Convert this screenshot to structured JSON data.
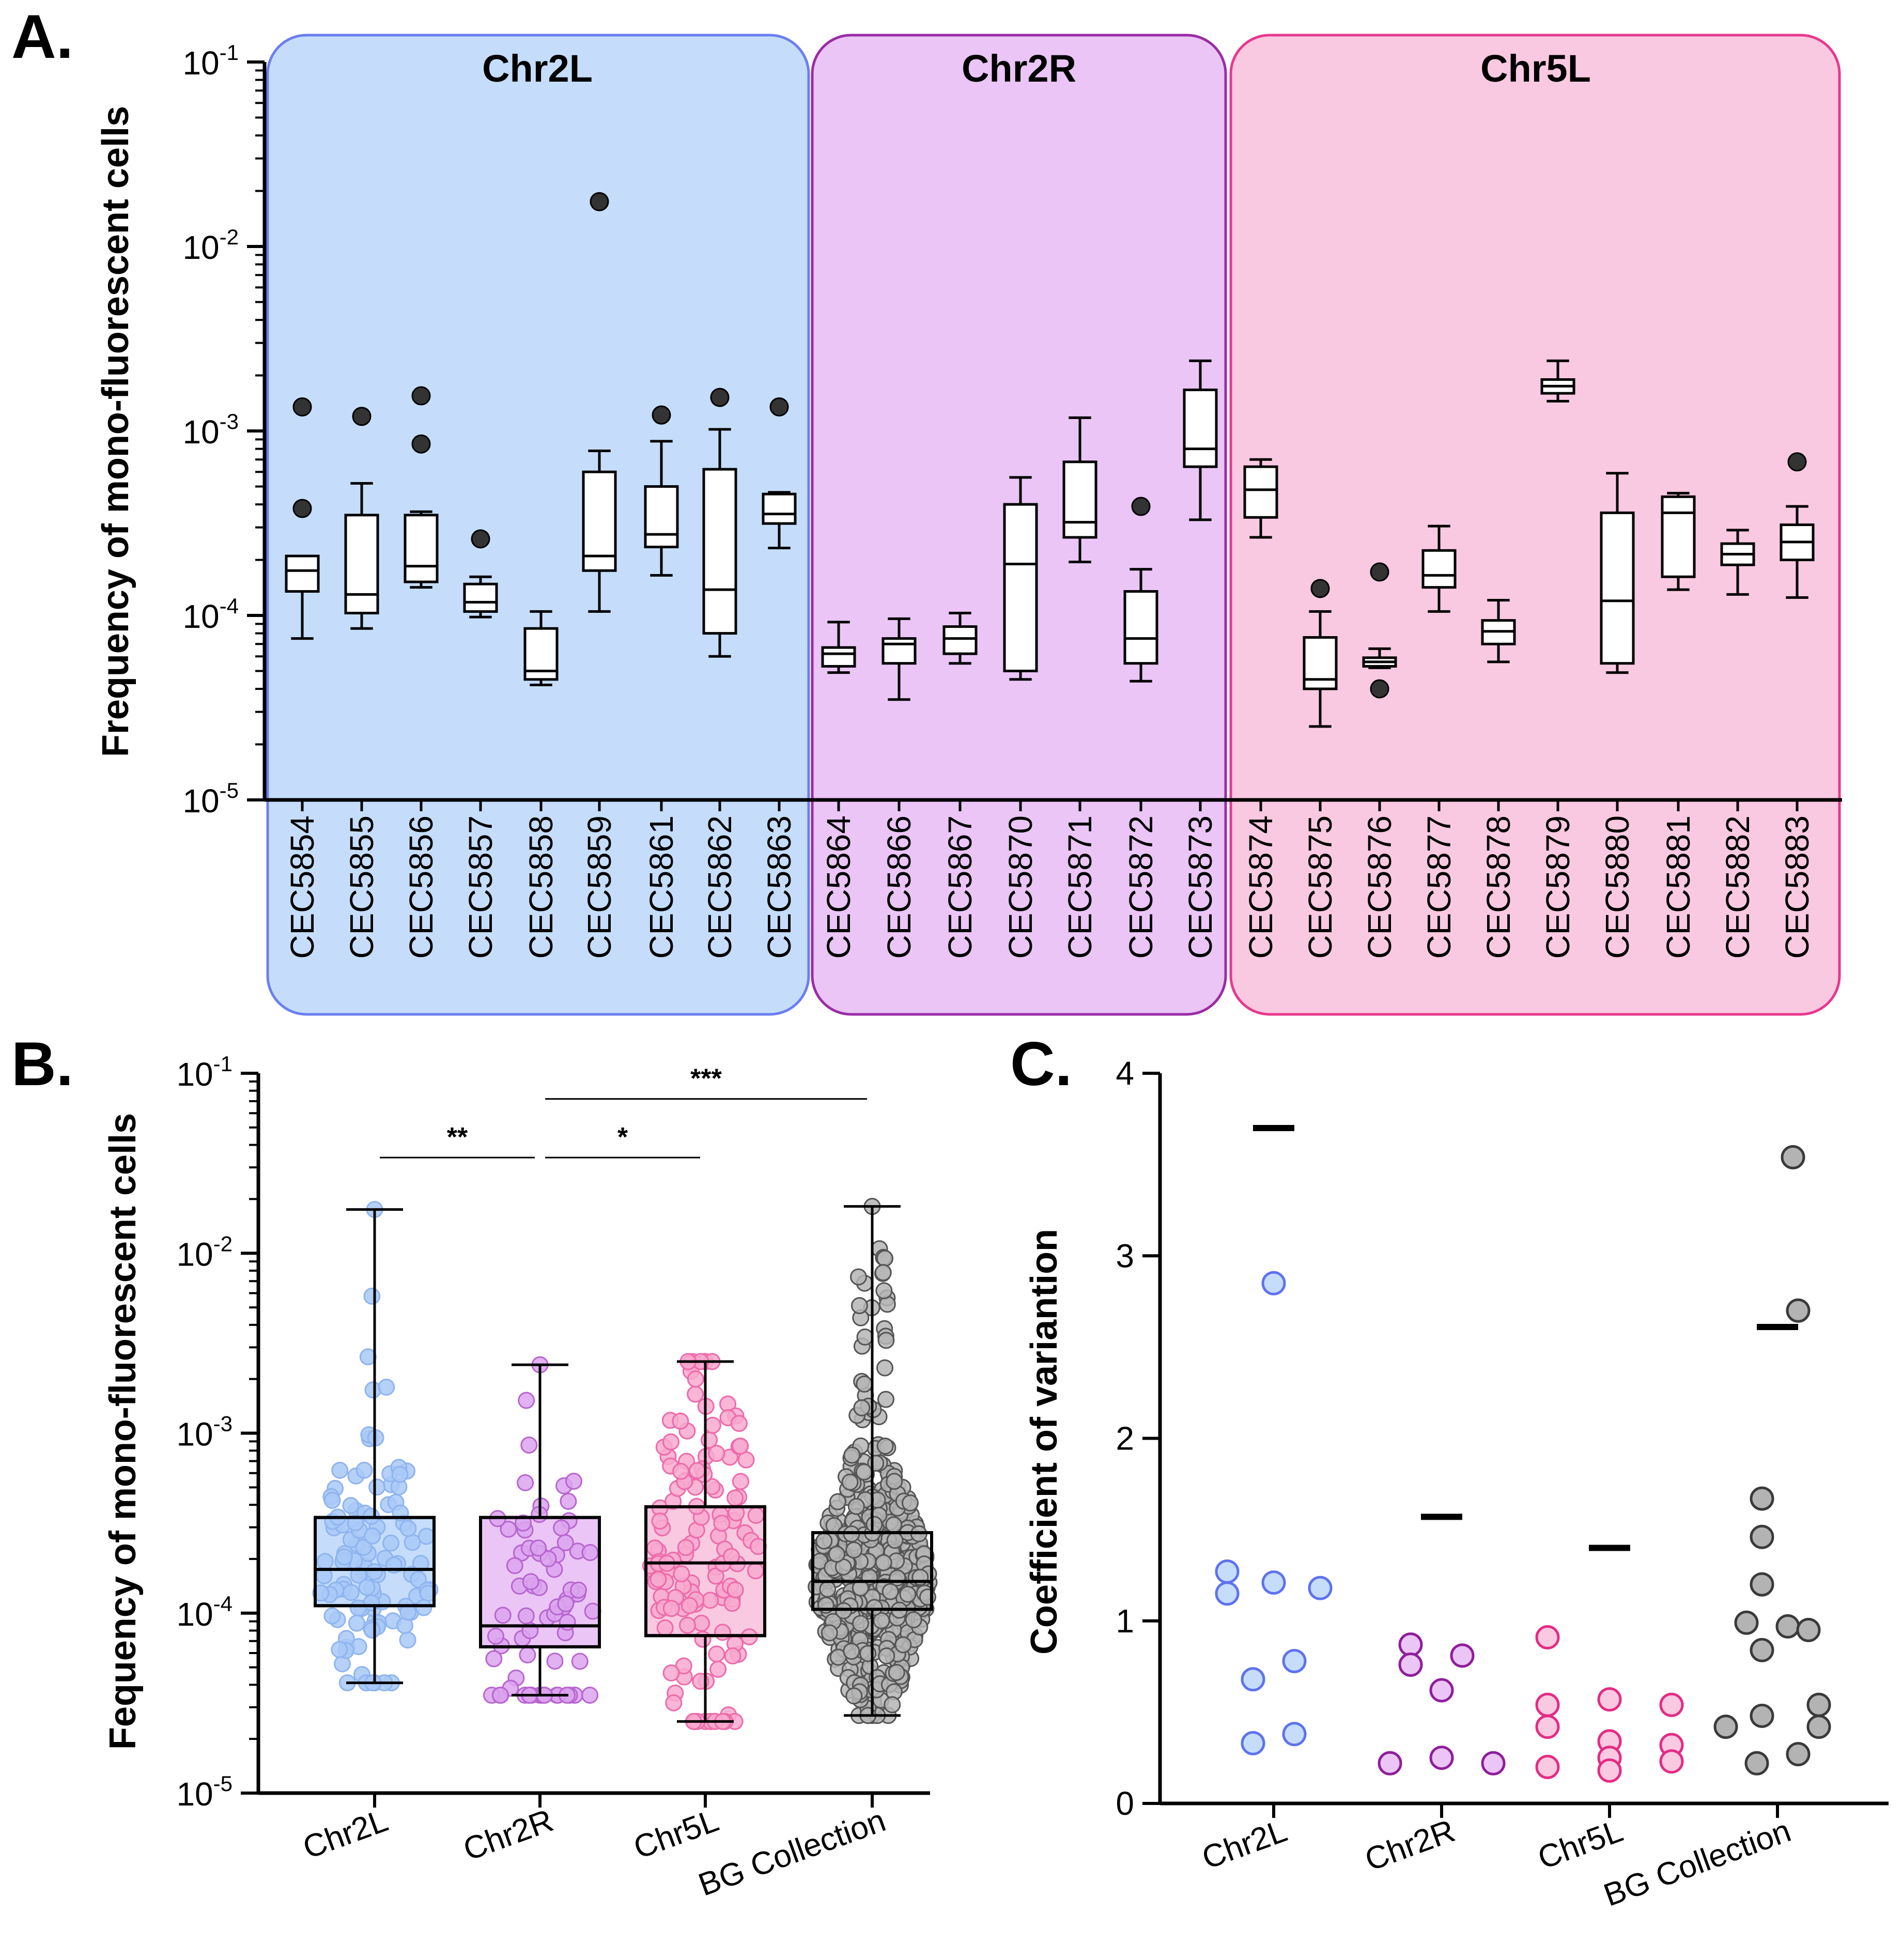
{
  "figure": {
    "panel_letters": [
      "A.",
      "B.",
      "C."
    ]
  },
  "chart_data": [
    {
      "panel": "A.",
      "type": "box",
      "ylabel": "Frequency of mono-fluorescent cells",
      "yscale": "log",
      "ylim": [
        1e-05,
        0.1
      ],
      "yticks": [
        {
          "base": "10",
          "exp": "-1",
          "value": 0.1
        },
        {
          "base": "10",
          "exp": "-2",
          "value": 0.01
        },
        {
          "base": "10",
          "exp": "-3",
          "value": 0.001
        },
        {
          "base": "10",
          "exp": "-4",
          "value": 0.0001
        },
        {
          "base": "10",
          "exp": "-5",
          "value": 1e-05
        }
      ],
      "groups": [
        {
          "name": "Chr2L",
          "fill": "#c5ddfb",
          "stroke": "#6b7ef0",
          "strains": [
            {
              "label": "CEC5854",
              "min": 7.5e-05,
              "q1": 0.000135,
              "median": 0.000175,
              "q3": 0.00021,
              "max": 0.00021,
              "outliers": [
                0.00038,
                0.00135
              ]
            },
            {
              "label": "CEC5855",
              "min": 8.5e-05,
              "q1": 0.000103,
              "median": 0.00013,
              "q3": 0.00035,
              "max": 0.00052,
              "outliers": [
                0.0012
              ]
            },
            {
              "label": "CEC5856",
              "min": 0.000142,
              "q1": 0.000152,
              "median": 0.000185,
              "q3": 0.00035,
              "max": 0.000365,
              "outliers": [
                0.00085,
                0.00155
              ]
            },
            {
              "label": "CEC5857",
              "min": 9.8e-05,
              "q1": 0.000105,
              "median": 0.000118,
              "q3": 0.000148,
              "max": 0.000162,
              "outliers": [
                0.00026
              ]
            },
            {
              "label": "CEC5858",
              "min": 4.2e-05,
              "q1": 4.5e-05,
              "median": 5e-05,
              "q3": 8.5e-05,
              "max": 0.000105,
              "outliers": []
            },
            {
              "label": "CEC5859",
              "min": 0.000105,
              "q1": 0.000175,
              "median": 0.00021,
              "q3": 0.0006,
              "max": 0.00078,
              "outliers": [
                0.0175
              ]
            },
            {
              "label": "CEC5861",
              "min": 0.000165,
              "q1": 0.000235,
              "median": 0.000275,
              "q3": 0.0005,
              "max": 0.00088,
              "outliers": [
                0.00122
              ]
            },
            {
              "label": "CEC5862",
              "min": 6e-05,
              "q1": 8e-05,
              "median": 0.000138,
              "q3": 0.00062,
              "max": 0.00102,
              "outliers": [
                0.00152
              ]
            },
            {
              "label": "CEC5863",
              "min": 0.000232,
              "q1": 0.000315,
              "median": 0.000355,
              "q3": 0.000455,
              "max": 0.000465,
              "outliers": [
                0.00135
              ]
            }
          ]
        },
        {
          "name": "Chr2R",
          "fill": "#eac5f6",
          "stroke": "#9a2ca6",
          "strains": [
            {
              "label": "CEC5864",
              "min": 4.9e-05,
              "q1": 5.3e-05,
              "median": 6.2e-05,
              "q3": 6.7e-05,
              "max": 9.2e-05,
              "outliers": []
            },
            {
              "label": "CEC5866",
              "min": 3.5e-05,
              "q1": 5.5e-05,
              "median": 7e-05,
              "q3": 7.5e-05,
              "max": 9.6e-05,
              "outliers": []
            },
            {
              "label": "CEC5867",
              "min": 5.5e-05,
              "q1": 6.2e-05,
              "median": 7.5e-05,
              "q3": 8.7e-05,
              "max": 0.000103,
              "outliers": []
            },
            {
              "label": "CEC5870",
              "min": 4.5e-05,
              "q1": 5e-05,
              "median": 0.00019,
              "q3": 0.0004,
              "max": 0.00056,
              "outliers": []
            },
            {
              "label": "CEC5871",
              "min": 0.000195,
              "q1": 0.000265,
              "median": 0.00032,
              "q3": 0.00068,
              "max": 0.00118,
              "outliers": []
            },
            {
              "label": "CEC5872",
              "min": 4.4e-05,
              "q1": 5.5e-05,
              "median": 7.5e-05,
              "q3": 0.000135,
              "max": 0.000178,
              "outliers": [
                0.00039
              ]
            },
            {
              "label": "CEC5873",
              "min": 0.00033,
              "q1": 0.00064,
              "median": 0.0008,
              "q3": 0.00167,
              "max": 0.0024,
              "outliers": []
            }
          ]
        },
        {
          "name": "Chr5L",
          "fill": "#f9c9e1",
          "stroke": "#e8388e",
          "strains": [
            {
              "label": "CEC5874",
              "min": 0.000265,
              "q1": 0.00034,
              "median": 0.00048,
              "q3": 0.00064,
              "max": 0.0007,
              "outliers": []
            },
            {
              "label": "CEC5875",
              "min": 2.5e-05,
              "q1": 4e-05,
              "median": 4.5e-05,
              "q3": 7.6e-05,
              "max": 0.000105,
              "outliers": [
                0.00014
              ]
            },
            {
              "label": "CEC5876",
              "min": 5.2e-05,
              "q1": 5.3e-05,
              "median": 5.6e-05,
              "q3": 5.9e-05,
              "max": 6.6e-05,
              "outliers": [
                4e-05,
                0.000172
              ]
            },
            {
              "label": "CEC5877",
              "min": 0.000105,
              "q1": 0.000142,
              "median": 0.000165,
              "q3": 0.000225,
              "max": 0.000305,
              "outliers": []
            },
            {
              "label": "CEC5878",
              "min": 5.6e-05,
              "q1": 7e-05,
              "median": 8.2e-05,
              "q3": 9.4e-05,
              "max": 0.000121,
              "outliers": []
            },
            {
              "label": "CEC5879",
              "min": 0.00145,
              "q1": 0.0016,
              "median": 0.00175,
              "q3": 0.0019,
              "max": 0.0024,
              "outliers": []
            },
            {
              "label": "CEC5880",
              "min": 4.9e-05,
              "q1": 5.5e-05,
              "median": 0.00012,
              "q3": 0.00036,
              "max": 0.00059,
              "outliers": []
            },
            {
              "label": "CEC5881",
              "min": 0.000138,
              "q1": 0.000162,
              "median": 0.00036,
              "q3": 0.00044,
              "max": 0.00046,
              "outliers": []
            },
            {
              "label": "CEC5882",
              "min": 0.00013,
              "q1": 0.000188,
              "median": 0.000215,
              "q3": 0.000245,
              "max": 0.00029,
              "outliers": []
            },
            {
              "label": "CEC5883",
              "min": 0.000125,
              "q1": 0.0002,
              "median": 0.00025,
              "q3": 0.00031,
              "max": 0.00039,
              "outliers": [
                0.00068
              ]
            }
          ]
        }
      ]
    },
    {
      "panel": "B.",
      "type": "box",
      "ylabel": "Fequency of mono-fluorescent cells",
      "yscale": "log",
      "ylim": [
        1e-05,
        0.1
      ],
      "yticks": [
        {
          "base": "10",
          "exp": "-1",
          "value": 0.1
        },
        {
          "base": "10",
          "exp": "-2",
          "value": 0.01
        },
        {
          "base": "10",
          "exp": "-3",
          "value": 0.001
        },
        {
          "base": "10",
          "exp": "-4",
          "value": 0.0001
        },
        {
          "base": "10",
          "exp": "-5",
          "value": 1e-05
        }
      ],
      "categories": [
        {
          "label": "Chr2L",
          "fill": "#c5ddfb",
          "dot_fill": "#a9c9f7",
          "dot_stroke": "#8fb4f0",
          "min": 4.1e-05,
          "q1": 0.00011,
          "median": 0.000175,
          "q3": 0.00034,
          "max": 0.0175,
          "n_points": 110
        },
        {
          "label": "Chr2R",
          "fill": "#eac5f6",
          "dot_fill": "#dca3ee",
          "dot_stroke": "#b766cf",
          "min": 3.5e-05,
          "q1": 6.5e-05,
          "median": 8.5e-05,
          "q3": 0.00034,
          "max": 0.0024,
          "n_points": 72
        },
        {
          "label": "Chr5L",
          "fill": "#f9c9e1",
          "dot_fill": "#f8a9cf",
          "dot_stroke": "#ee6aaa",
          "min": 2.5e-05,
          "q1": 7.5e-05,
          "median": 0.00019,
          "q3": 0.00039,
          "max": 0.0025,
          "n_points": 130
        },
        {
          "label": "BG Collection",
          "fill": "#ffffff",
          "dot_fill": "#b5b5b5",
          "dot_stroke": "#555555",
          "min": 2.7e-05,
          "q1": 0.000105,
          "median": 0.00015,
          "q3": 0.00028,
          "max": 0.0182,
          "n_points": 560
        }
      ],
      "significance": [
        {
          "from": 0,
          "to": 1,
          "label": "**",
          "y": 0.034
        },
        {
          "from": 1,
          "to": 2,
          "label": "*",
          "y": 0.034
        },
        {
          "from": 1,
          "to": 3,
          "label": "***",
          "y": 0.072
        }
      ]
    },
    {
      "panel": "C.",
      "type": "scatter",
      "ylabel": "Coefficient of variantion",
      "ylim": [
        0,
        4
      ],
      "yticks": [
        "0",
        "1",
        "2",
        "3",
        "4"
      ],
      "categories": [
        {
          "label": "Chr2L",
          "dot_fill": "#c5ddfb",
          "dot_stroke": "#5f72ee",
          "mean_marker": 3.7,
          "values": [
            1.27,
            1.15,
            2.85,
            1.21,
            1.18,
            0.68,
            0.78,
            0.33,
            0.38
          ]
        },
        {
          "label": "Chr2R",
          "dot_fill": "#eac5f6",
          "dot_stroke": "#8e1f99",
          "mean_marker": 1.57,
          "values": [
            0.87,
            0.76,
            0.81,
            0.62,
            0.25,
            0.22,
            0.22
          ]
        },
        {
          "label": "Chr5L",
          "dot_fill": "#f9c9e1",
          "dot_stroke": "#e32c84",
          "mean_marker": 1.4,
          "values": [
            0.91,
            0.54,
            0.57,
            0.54,
            0.42,
            0.34,
            0.32,
            0.25,
            0.23,
            0.2,
            0.18
          ]
        },
        {
          "label": "BG Collection",
          "dot_fill": "#b3b3b3",
          "dot_stroke": "#3a3a3a",
          "mean_marker": 2.61,
          "values": [
            3.54,
            2.7,
            1.67,
            1.46,
            1.2,
            0.99,
            0.97,
            0.95,
            0.84,
            0.54,
            0.48,
            0.42,
            0.42,
            0.27,
            0.22
          ]
        }
      ]
    }
  ]
}
